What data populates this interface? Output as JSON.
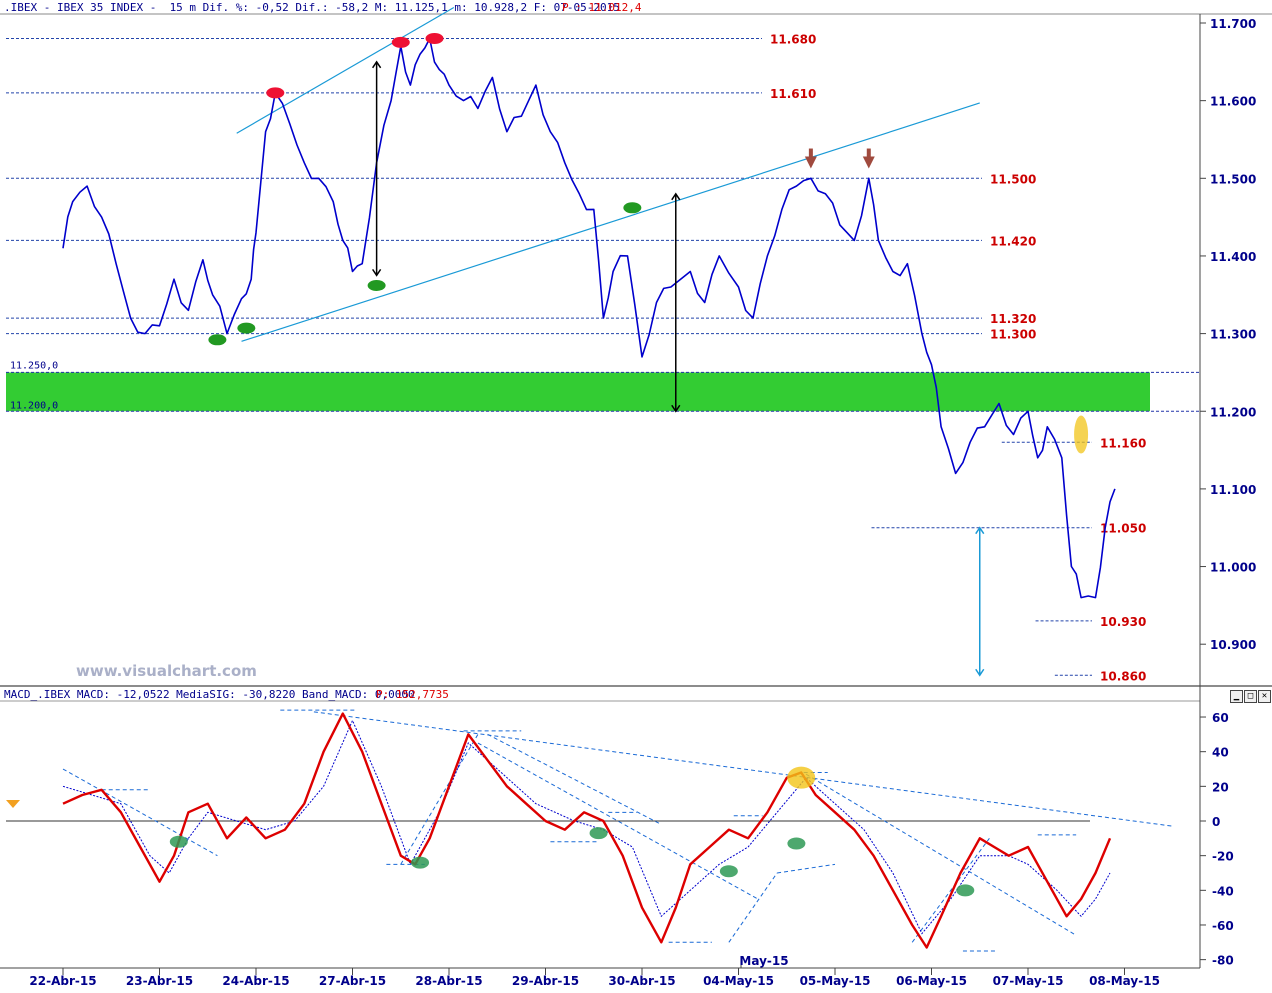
{
  "header": {
    "main": ".IBEX - IBEX 35 INDEX -  15 m Dif. %: -0,52 Dif.: -58,2 M: 11.125,1 m: 10.928,2 F: 07-05-2015",
    "price": "P : 11.012,4",
    "macd": "MACD_.IBEX MACD: -12,0522 MediaSIG: -30,8220 Band_MACD: 0,0000",
    "macd_price": "P: 152,7735"
  },
  "watermark": "www.visualchart.com",
  "window_buttons": [
    "▁",
    "□",
    "✕"
  ],
  "colors": {
    "price_line": "#0000cc",
    "macd_line": "#dd0000",
    "signal_line": "#0000cc",
    "level_labels": "#cc0000",
    "support_zone": "#33cc33",
    "trendlines": "#1a9ad6"
  },
  "chart_data": [
    {
      "type": "line",
      "name": "IBEX 35 INDEX 15 m",
      "x_ticks": [
        "22-Abr-15",
        "23-Abr-15",
        "24-Abr-15",
        "27-Abr-15",
        "28-Abr-15",
        "29-Abr-15",
        "30-Abr-15",
        "04-May-15",
        "05-May-15",
        "06-May-15",
        "07-May-15",
        "08-May-15"
      ],
      "month_marker": "May-15",
      "y_ticks": [
        "11.700",
        "11.600",
        "11.500",
        "11.400",
        "11.300",
        "11.200",
        "11.100",
        "11.000",
        "10.900"
      ],
      "ylim": [
        10840,
        11715
      ],
      "series": [
        {
          "name": "price",
          "points": [
            [
              0,
              11410
            ],
            [
              0.1,
              11470
            ],
            [
              0.25,
              11490
            ],
            [
              0.4,
              11450
            ],
            [
              0.55,
              11390
            ],
            [
              0.7,
              11320
            ],
            [
              0.85,
              11300
            ],
            [
              1,
              11310
            ],
            [
              1.15,
              11370
            ],
            [
              1.3,
              11330
            ],
            [
              1.45,
              11395
            ],
            [
              1.55,
              11350
            ],
            [
              1.7,
              11300
            ],
            [
              1.85,
              11345
            ],
            [
              1.95,
              11370
            ],
            [
              2,
              11430
            ],
            [
              2.1,
              11560
            ],
            [
              2.2,
              11610
            ],
            [
              2.35,
              11570
            ],
            [
              2.5,
              11520
            ],
            [
              2.65,
              11500
            ],
            [
              2.8,
              11470
            ],
            [
              2.9,
              11420
            ],
            [
              3,
              11380
            ],
            [
              3.1,
              11390
            ],
            [
              3.25,
              11520
            ],
            [
              3.4,
              11600
            ],
            [
              3.5,
              11670
            ],
            [
              3.6,
              11620
            ],
            [
              3.7,
              11660
            ],
            [
              3.8,
              11680
            ],
            [
              3.9,
              11640
            ],
            [
              4,
              11620
            ],
            [
              4.15,
              11600
            ],
            [
              4.3,
              11590
            ],
            [
              4.45,
              11630
            ],
            [
              4.6,
              11560
            ],
            [
              4.75,
              11580
            ],
            [
              4.9,
              11620
            ],
            [
              5.05,
              11560
            ],
            [
              5.2,
              11520
            ],
            [
              5.35,
              11480
            ],
            [
              5.5,
              11460
            ],
            [
              5.6,
              11320
            ],
            [
              5.7,
              11380
            ],
            [
              5.85,
              11400
            ],
            [
              6,
              11270
            ],
            [
              6.15,
              11340
            ],
            [
              6.3,
              11360
            ],
            [
              6.5,
              11380
            ],
            [
              6.65,
              11340
            ],
            [
              6.8,
              11400
            ],
            [
              7,
              11360
            ],
            [
              7.15,
              11320
            ],
            [
              7.3,
              11400
            ],
            [
              7.45,
              11460
            ],
            [
              7.6,
              11490
            ],
            [
              7.75,
              11500
            ],
            [
              7.9,
              11480
            ],
            [
              8.05,
              11440
            ],
            [
              8.2,
              11420
            ],
            [
              8.35,
              11500
            ],
            [
              8.45,
              11420
            ],
            [
              8.6,
              11380
            ],
            [
              8.75,
              11390
            ],
            [
              8.9,
              11300
            ],
            [
              9,
              11260
            ],
            [
              9.1,
              11180
            ],
            [
              9.25,
              11120
            ],
            [
              9.4,
              11160
            ],
            [
              9.55,
              11180
            ],
            [
              9.7,
              11210
            ],
            [
              9.85,
              11170
            ],
            [
              10,
              11200
            ],
            [
              10.1,
              11140
            ],
            [
              10.2,
              11180
            ],
            [
              10.35,
              11140
            ],
            [
              10.45,
              11000
            ],
            [
              10.55,
              10960
            ],
            [
              10.7,
              10960
            ],
            [
              10.8,
              11050
            ],
            [
              10.9,
              11100
            ]
          ]
        }
      ],
      "levels": [
        {
          "label": "11.680",
          "value": 11680,
          "from": 0.0
        },
        {
          "label": "11.610",
          "value": 11610,
          "from": 0.0
        },
        {
          "label": "11.500",
          "value": 11500,
          "from": 0.0
        },
        {
          "label": "11.420",
          "value": 11420,
          "from": 0.0
        },
        {
          "label": "11.320",
          "value": 11320,
          "from": 0.0
        },
        {
          "label": "11.300",
          "value": 11300,
          "from": 0.0
        },
        {
          "label": "11.160",
          "value": 11160,
          "from": 10.35
        },
        {
          "label": "11.050",
          "value": 11050,
          "from": 9.0
        },
        {
          "label": "10.930",
          "value": 10930,
          "from": 10.7
        },
        {
          "label": "10.860",
          "value": 10860,
          "from": 10.9
        }
      ],
      "zone": {
        "from": 11200,
        "to": 11250,
        "labels": [
          "11.250,0",
          "11.200,0"
        ]
      },
      "markers": {
        "tops": [
          [
            2.2,
            11610
          ],
          [
            3.5,
            11675
          ],
          [
            3.85,
            11680
          ]
        ],
        "bottoms": [
          [
            1.6,
            11292
          ],
          [
            1.9,
            11307
          ],
          [
            3.25,
            11362
          ],
          [
            5.9,
            11462
          ]
        ],
        "highlight": [
          [
            10.55,
            11170
          ]
        ],
        "arrows": [
          [
            7.75,
            11510
          ],
          [
            8.35,
            11510
          ]
        ]
      },
      "trendlines": [
        {
          "from": [
            1.8,
            11558
          ],
          "to": [
            4.05,
            11720
          ]
        },
        {
          "from": [
            1.85,
            11290
          ],
          "to": [
            9.5,
            11597
          ]
        }
      ],
      "measures": [
        {
          "x": 3.25,
          "from": 11375,
          "to": 11650,
          "color": "#000000"
        },
        {
          "x": 6.35,
          "from": 11200,
          "to": 11480,
          "color": "#000000"
        },
        {
          "x": 9.5,
          "from": 10860,
          "to": 11050,
          "color": "#1a9ad6"
        }
      ]
    },
    {
      "type": "line",
      "name": "MACD_.IBEX",
      "y_ticks": [
        "60",
        "40",
        "20",
        "0",
        "-20",
        "-40",
        "-60",
        "-80"
      ],
      "ylim": [
        -84,
        66
      ],
      "series": [
        {
          "name": "MACD",
          "points": [
            [
              0,
              10
            ],
            [
              0.2,
              15
            ],
            [
              0.4,
              18
            ],
            [
              0.6,
              5
            ],
            [
              0.8,
              -15
            ],
            [
              1,
              -35
            ],
            [
              1.15,
              -20
            ],
            [
              1.3,
              5
            ],
            [
              1.5,
              10
            ],
            [
              1.7,
              -10
            ],
            [
              1.9,
              2
            ],
            [
              2.1,
              -10
            ],
            [
              2.3,
              -5
            ],
            [
              2.5,
              10
            ],
            [
              2.7,
              40
            ],
            [
              2.9,
              62
            ],
            [
              3.1,
              40
            ],
            [
              3.3,
              10
            ],
            [
              3.5,
              -20
            ],
            [
              3.65,
              -25
            ],
            [
              3.8,
              -10
            ],
            [
              4,
              20
            ],
            [
              4.2,
              50
            ],
            [
              4.4,
              35
            ],
            [
              4.6,
              20
            ],
            [
              4.8,
              10
            ],
            [
              5,
              0
            ],
            [
              5.2,
              -5
            ],
            [
              5.4,
              5
            ],
            [
              5.6,
              0
            ],
            [
              5.8,
              -20
            ],
            [
              6,
              -50
            ],
            [
              6.2,
              -70
            ],
            [
              6.35,
              -50
            ],
            [
              6.5,
              -25
            ],
            [
              6.7,
              -15
            ],
            [
              6.9,
              -5
            ],
            [
              7.1,
              -10
            ],
            [
              7.3,
              5
            ],
            [
              7.5,
              25
            ],
            [
              7.65,
              28
            ],
            [
              7.8,
              15
            ],
            [
              8,
              5
            ],
            [
              8.2,
              -5
            ],
            [
              8.4,
              -20
            ],
            [
              8.6,
              -40
            ],
            [
              8.8,
              -60
            ],
            [
              8.95,
              -73
            ],
            [
              9.1,
              -55
            ],
            [
              9.3,
              -30
            ],
            [
              9.5,
              -10
            ],
            [
              9.65,
              -15
            ],
            [
              9.8,
              -20
            ],
            [
              10,
              -15
            ],
            [
              10.2,
              -35
            ],
            [
              10.4,
              -55
            ],
            [
              10.55,
              -45
            ],
            [
              10.7,
              -30
            ],
            [
              10.85,
              -10
            ]
          ]
        },
        {
          "name": "MediaSIG",
          "points": [
            [
              0,
              20
            ],
            [
              0.3,
              15
            ],
            [
              0.6,
              10
            ],
            [
              0.9,
              -20
            ],
            [
              1.1,
              -30
            ],
            [
              1.3,
              -10
            ],
            [
              1.5,
              5
            ],
            [
              1.8,
              0
            ],
            [
              2.1,
              -5
            ],
            [
              2.4,
              0
            ],
            [
              2.7,
              20
            ],
            [
              3,
              58
            ],
            [
              3.3,
              20
            ],
            [
              3.6,
              -25
            ],
            [
              3.9,
              5
            ],
            [
              4.2,
              45
            ],
            [
              4.5,
              30
            ],
            [
              4.9,
              10
            ],
            [
              5.3,
              0
            ],
            [
              5.6,
              -5
            ],
            [
              5.9,
              -15
            ],
            [
              6.2,
              -55
            ],
            [
              6.5,
              -40
            ],
            [
              6.8,
              -25
            ],
            [
              7.1,
              -15
            ],
            [
              7.4,
              5
            ],
            [
              7.7,
              25
            ],
            [
              8,
              10
            ],
            [
              8.3,
              -5
            ],
            [
              8.6,
              -30
            ],
            [
              8.9,
              -65
            ],
            [
              9.2,
              -45
            ],
            [
              9.5,
              -20
            ],
            [
              9.8,
              -20
            ],
            [
              10,
              -25
            ],
            [
              10.3,
              -40
            ],
            [
              10.55,
              -55
            ],
            [
              10.7,
              -45
            ],
            [
              10.85,
              -30
            ]
          ]
        }
      ],
      "markers": {
        "ovals": [
          [
            1.2,
            -12
          ],
          [
            3.7,
            -24
          ],
          [
            5.55,
            -7
          ],
          [
            6.9,
            -29
          ],
          [
            7.6,
            -13
          ],
          [
            9.35,
            -40
          ]
        ],
        "highlight": [
          [
            7.65,
            25
          ]
        ]
      },
      "dashed": [
        {
          "from": [
            0.0,
            30
          ],
          "to": [
            1.6,
            -20
          ]
        },
        {
          "from": [
            2.6,
            63
          ],
          "to": [
            11.5,
            -3
          ]
        },
        {
          "from": [
            4.4,
            50
          ],
          "to": [
            6.2,
            -2
          ]
        },
        {
          "from": [
            4.3,
            45
          ],
          "to": [
            7.2,
            -45
          ]
        },
        {
          "from": [
            6.9,
            -70
          ],
          "to": [
            7.4,
            -30
          ]
        },
        {
          "from": [
            7.4,
            -30
          ],
          "to": [
            8.0,
            -25
          ]
        },
        {
          "from": [
            7.7,
            27
          ],
          "to": [
            10.5,
            -66
          ]
        },
        {
          "from": [
            8.8,
            -70
          ],
          "to": [
            9.6,
            -10
          ]
        },
        {
          "from": [
            3.5,
            -25
          ],
          "to": [
            4.3,
            50
          ]
        }
      ],
      "ticks": [
        {
          "x": 0.65,
          "y": 18,
          "w": 0.5
        },
        {
          "x": 2.65,
          "y": 64,
          "w": 0.8
        },
        {
          "x": 3.55,
          "y": -25,
          "w": 0.4
        },
        {
          "x": 4.45,
          "y": 52,
          "w": 0.6
        },
        {
          "x": 5.3,
          "y": -12,
          "w": 0.5
        },
        {
          "x": 5.8,
          "y": 5,
          "w": 0.3
        },
        {
          "x": 6.5,
          "y": -70,
          "w": 0.45
        },
        {
          "x": 7.1,
          "y": 3,
          "w": 0.3
        },
        {
          "x": 7.8,
          "y": 28,
          "w": 0.25
        },
        {
          "x": 9.5,
          "y": -75,
          "w": 0.35
        },
        {
          "x": 10.3,
          "y": -8,
          "w": 0.4
        }
      ]
    }
  ]
}
